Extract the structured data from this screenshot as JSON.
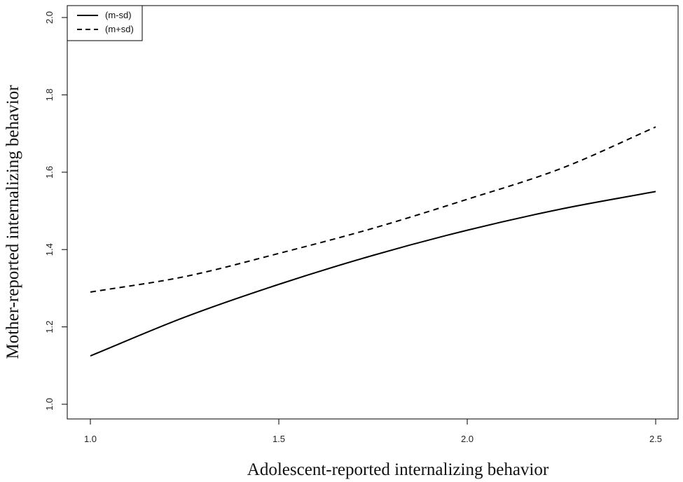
{
  "chart_data": {
    "type": "line",
    "title": "",
    "xlabel": "Adolescent-reported internalizing behavior",
    "ylabel": "Mother-reported internalizing behavior",
    "xlim": [
      1.0,
      2.5
    ],
    "ylim": [
      1.0,
      2.0
    ],
    "xticks": [
      "1.0",
      "1.5",
      "2.0",
      "2.5"
    ],
    "yticks": [
      "1.0",
      "1.2",
      "1.4",
      "1.6",
      "1.8",
      "2.0"
    ],
    "grid": false,
    "legend_position": "top-left",
    "x": [
      1.0,
      1.25,
      1.5,
      1.75,
      2.0,
      2.25,
      2.5
    ],
    "series": [
      {
        "name": "(m-sd)",
        "line_style": "solid",
        "color": "#000000",
        "values": [
          1.125,
          1.225,
          1.31,
          1.385,
          1.45,
          1.505,
          1.55
        ]
      },
      {
        "name": "(m+sd)",
        "line_style": "dashed",
        "color": "#000000",
        "values": [
          1.29,
          1.33,
          1.39,
          1.455,
          1.53,
          1.61,
          1.717
        ]
      }
    ]
  }
}
